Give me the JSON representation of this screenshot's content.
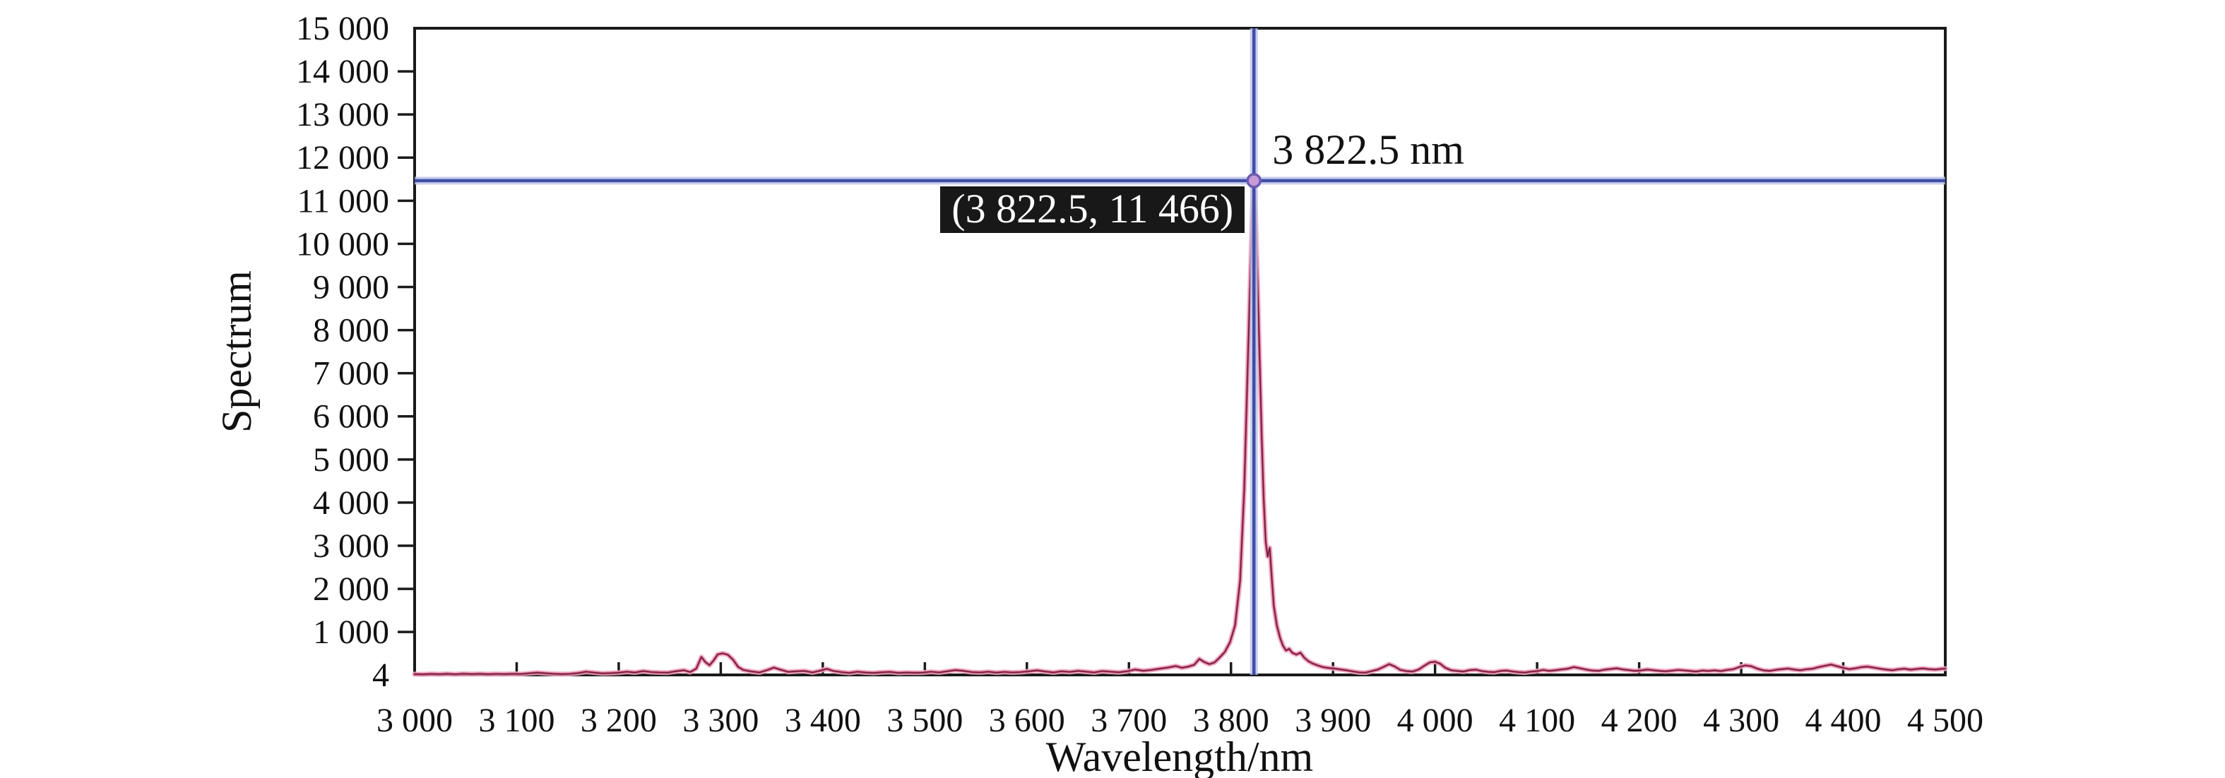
{
  "figure": {
    "background": "#ffffff",
    "frame_color": "#1a1a1a",
    "accent_blue": "#3f4ea6",
    "accent_blue_halo": "#b9c1e8",
    "curve_halo": "#f0a9c4",
    "curve_mid": "#d05d88",
    "curve_core": "#701f39",
    "marker_fill": "#c79ad8",
    "marker_stroke": "#6b5ab0",
    "tooltip_bg": "#181818",
    "tooltip_fg": "#ffffff"
  },
  "chart_data": {
    "type": "line",
    "title": "",
    "xlabel": "Wavelength/nm",
    "ylabel": "Spectrum",
    "xlim": [
      3000,
      4500
    ],
    "ylim": [
      4,
      15000
    ],
    "grid": "off",
    "legend": "none",
    "x_ticks": [
      {
        "value": 3000,
        "label": "3 000"
      },
      {
        "value": 3100,
        "label": "3 100"
      },
      {
        "value": 3200,
        "label": "3 200"
      },
      {
        "value": 3300,
        "label": "3 300"
      },
      {
        "value": 3400,
        "label": "3 400"
      },
      {
        "value": 3500,
        "label": "3 500"
      },
      {
        "value": 3600,
        "label": "3 600"
      },
      {
        "value": 3700,
        "label": "3 700"
      },
      {
        "value": 3800,
        "label": "3 800"
      },
      {
        "value": 3900,
        "label": "3 900"
      },
      {
        "value": 4000,
        "label": "4 000"
      },
      {
        "value": 4100,
        "label": "4 100"
      },
      {
        "value": 4200,
        "label": "4 200"
      },
      {
        "value": 4300,
        "label": "4 300"
      },
      {
        "value": 4400,
        "label": "4 400"
      },
      {
        "value": 4500,
        "label": "4 500"
      }
    ],
    "y_ticks": [
      {
        "value": 15000,
        "label": "15 000"
      },
      {
        "value": 14000,
        "label": "14 000"
      },
      {
        "value": 13000,
        "label": "13 000"
      },
      {
        "value": 12000,
        "label": "12 000"
      },
      {
        "value": 11000,
        "label": "11 000"
      },
      {
        "value": 10000,
        "label": "10 000"
      },
      {
        "value": 9000,
        "label": "9 000"
      },
      {
        "value": 8000,
        "label": "8 000"
      },
      {
        "value": 7000,
        "label": "7 000"
      },
      {
        "value": 6000,
        "label": "6 000"
      },
      {
        "value": 5000,
        "label": "5 000"
      },
      {
        "value": 4000,
        "label": "4 000"
      },
      {
        "value": 3000,
        "label": "3 000"
      },
      {
        "value": 2000,
        "label": "2 000"
      },
      {
        "value": 1000,
        "label": "1 000"
      },
      {
        "value": 4,
        "label": "4"
      }
    ],
    "cursor": {
      "x": 3822.5,
      "y": 11466,
      "x_label": "3 822.5 nm",
      "tooltip": "(3 822.5, 11 466)"
    },
    "series": [
      {
        "name": "spectrum",
        "peak": {
          "x": 3822.5,
          "y": 11466
        },
        "points": [
          [
            3000,
            25
          ],
          [
            3008,
            18
          ],
          [
            3016,
            28
          ],
          [
            3024,
            22
          ],
          [
            3032,
            30
          ],
          [
            3040,
            20
          ],
          [
            3048,
            32
          ],
          [
            3056,
            24
          ],
          [
            3064,
            30
          ],
          [
            3072,
            22
          ],
          [
            3080,
            28
          ],
          [
            3088,
            24
          ],
          [
            3096,
            30
          ],
          [
            3104,
            26
          ],
          [
            3112,
            42
          ],
          [
            3120,
            58
          ],
          [
            3128,
            44
          ],
          [
            3136,
            30
          ],
          [
            3144,
            24
          ],
          [
            3152,
            28
          ],
          [
            3160,
            46
          ],
          [
            3168,
            78
          ],
          [
            3176,
            58
          ],
          [
            3184,
            40
          ],
          [
            3192,
            46
          ],
          [
            3200,
            56
          ],
          [
            3208,
            78
          ],
          [
            3216,
            60
          ],
          [
            3224,
            92
          ],
          [
            3232,
            70
          ],
          [
            3240,
            62
          ],
          [
            3248,
            58
          ],
          [
            3256,
            88
          ],
          [
            3264,
            112
          ],
          [
            3270,
            70
          ],
          [
            3276,
            150
          ],
          [
            3281,
            420
          ],
          [
            3285,
            300
          ],
          [
            3289,
            230
          ],
          [
            3293,
            340
          ],
          [
            3297,
            480
          ],
          [
            3302,
            505
          ],
          [
            3307,
            470
          ],
          [
            3312,
            360
          ],
          [
            3317,
            190
          ],
          [
            3322,
            120
          ],
          [
            3330,
            85
          ],
          [
            3338,
            62
          ],
          [
            3346,
            120
          ],
          [
            3352,
            175
          ],
          [
            3358,
            130
          ],
          [
            3366,
            75
          ],
          [
            3374,
            88
          ],
          [
            3382,
            95
          ],
          [
            3390,
            62
          ],
          [
            3398,
            105
          ],
          [
            3404,
            145
          ],
          [
            3410,
            98
          ],
          [
            3418,
            70
          ],
          [
            3426,
            52
          ],
          [
            3434,
            78
          ],
          [
            3442,
            60
          ],
          [
            3450,
            52
          ],
          [
            3458,
            66
          ],
          [
            3466,
            72
          ],
          [
            3474,
            52
          ],
          [
            3482,
            60
          ],
          [
            3490,
            55
          ],
          [
            3498,
            58
          ],
          [
            3506,
            78
          ],
          [
            3514,
            62
          ],
          [
            3522,
            88
          ],
          [
            3530,
            115
          ],
          [
            3538,
            98
          ],
          [
            3546,
            70
          ],
          [
            3554,
            62
          ],
          [
            3562,
            78
          ],
          [
            3570,
            58
          ],
          [
            3578,
            72
          ],
          [
            3586,
            62
          ],
          [
            3594,
            70
          ],
          [
            3602,
            88
          ],
          [
            3610,
            108
          ],
          [
            3618,
            82
          ],
          [
            3626,
            62
          ],
          [
            3634,
            88
          ],
          [
            3642,
            72
          ],
          [
            3650,
            98
          ],
          [
            3658,
            80
          ],
          [
            3666,
            62
          ],
          [
            3674,
            92
          ],
          [
            3682,
            78
          ],
          [
            3690,
            64
          ],
          [
            3698,
            88
          ],
          [
            3706,
            128
          ],
          [
            3714,
            100
          ],
          [
            3722,
            118
          ],
          [
            3730,
            148
          ],
          [
            3738,
            175
          ],
          [
            3746,
            210
          ],
          [
            3752,
            170
          ],
          [
            3758,
            195
          ],
          [
            3764,
            240
          ],
          [
            3769,
            375
          ],
          [
            3774,
            300
          ],
          [
            3779,
            255
          ],
          [
            3784,
            295
          ],
          [
            3789,
            410
          ],
          [
            3794,
            540
          ],
          [
            3799,
            760
          ],
          [
            3804,
            1150
          ],
          [
            3809,
            2200
          ],
          [
            3813,
            4300
          ],
          [
            3816,
            6800
          ],
          [
            3819,
            9300
          ],
          [
            3821,
            10800
          ],
          [
            3822.5,
            11466
          ],
          [
            3824,
            10700
          ],
          [
            3826,
            9200
          ],
          [
            3828,
            7400
          ],
          [
            3830,
            5600
          ],
          [
            3832,
            4100
          ],
          [
            3834,
            3100
          ],
          [
            3836,
            2750
          ],
          [
            3838,
            2950
          ],
          [
            3840,
            2250
          ],
          [
            3842,
            1600
          ],
          [
            3845,
            1150
          ],
          [
            3848,
            870
          ],
          [
            3851,
            680
          ],
          [
            3854,
            570
          ],
          [
            3857,
            610
          ],
          [
            3860,
            520
          ],
          [
            3864,
            475
          ],
          [
            3868,
            520
          ],
          [
            3872,
            400
          ],
          [
            3876,
            320
          ],
          [
            3880,
            270
          ],
          [
            3885,
            225
          ],
          [
            3890,
            185
          ],
          [
            3896,
            165
          ],
          [
            3902,
            150
          ],
          [
            3908,
            128
          ],
          [
            3914,
            108
          ],
          [
            3920,
            82
          ],
          [
            3926,
            62
          ],
          [
            3932,
            58
          ],
          [
            3938,
            92
          ],
          [
            3944,
            130
          ],
          [
            3950,
            195
          ],
          [
            3955,
            255
          ],
          [
            3960,
            205
          ],
          [
            3966,
            120
          ],
          [
            3972,
            92
          ],
          [
            3978,
            82
          ],
          [
            3984,
            130
          ],
          [
            3990,
            225
          ],
          [
            3995,
            295
          ],
          [
            4000,
            310
          ],
          [
            4005,
            265
          ],
          [
            4010,
            170
          ],
          [
            4016,
            110
          ],
          [
            4022,
            95
          ],
          [
            4028,
            82
          ],
          [
            4034,
            115
          ],
          [
            4040,
            125
          ],
          [
            4046,
            92
          ],
          [
            4052,
            75
          ],
          [
            4058,
            68
          ],
          [
            4064,
            95
          ],
          [
            4070,
            105
          ],
          [
            4076,
            82
          ],
          [
            4082,
            68
          ],
          [
            4088,
            60
          ],
          [
            4094,
            80
          ],
          [
            4100,
            92
          ],
          [
            4106,
            118
          ],
          [
            4112,
            98
          ],
          [
            4118,
            112
          ],
          [
            4124,
            132
          ],
          [
            4130,
            148
          ],
          [
            4136,
            185
          ],
          [
            4142,
            160
          ],
          [
            4148,
            128
          ],
          [
            4154,
            105
          ],
          [
            4160,
            98
          ],
          [
            4166,
            125
          ],
          [
            4172,
            142
          ],
          [
            4178,
            158
          ],
          [
            4184,
            132
          ],
          [
            4190,
            115
          ],
          [
            4196,
            98
          ],
          [
            4202,
            108
          ],
          [
            4208,
            128
          ],
          [
            4214,
            112
          ],
          [
            4220,
            98
          ],
          [
            4226,
            88
          ],
          [
            4232,
            102
          ],
          [
            4238,
            118
          ],
          [
            4244,
            108
          ],
          [
            4250,
            95
          ],
          [
            4256,
            82
          ],
          [
            4262,
            105
          ],
          [
            4268,
            95
          ],
          [
            4274,
            108
          ],
          [
            4280,
            92
          ],
          [
            4286,
            118
          ],
          [
            4292,
            135
          ],
          [
            4298,
            185
          ],
          [
            4304,
            225
          ],
          [
            4310,
            205
          ],
          [
            4316,
            148
          ],
          [
            4322,
            108
          ],
          [
            4328,
            98
          ],
          [
            4334,
            122
          ],
          [
            4340,
            138
          ],
          [
            4346,
            152
          ],
          [
            4352,
            128
          ],
          [
            4358,
            112
          ],
          [
            4364,
            135
          ],
          [
            4370,
            148
          ],
          [
            4376,
            185
          ],
          [
            4382,
            215
          ],
          [
            4388,
            245
          ],
          [
            4394,
            205
          ],
          [
            4400,
            168
          ],
          [
            4406,
            138
          ],
          [
            4412,
            158
          ],
          [
            4418,
            185
          ],
          [
            4424,
            195
          ],
          [
            4430,
            172
          ],
          [
            4436,
            148
          ],
          [
            4442,
            128
          ],
          [
            4448,
            112
          ],
          [
            4454,
            135
          ],
          [
            4460,
            148
          ],
          [
            4466,
            125
          ],
          [
            4472,
            142
          ],
          [
            4478,
            155
          ],
          [
            4484,
            138
          ],
          [
            4490,
            128
          ],
          [
            4496,
            145
          ],
          [
            4500,
            150
          ]
        ]
      }
    ]
  }
}
